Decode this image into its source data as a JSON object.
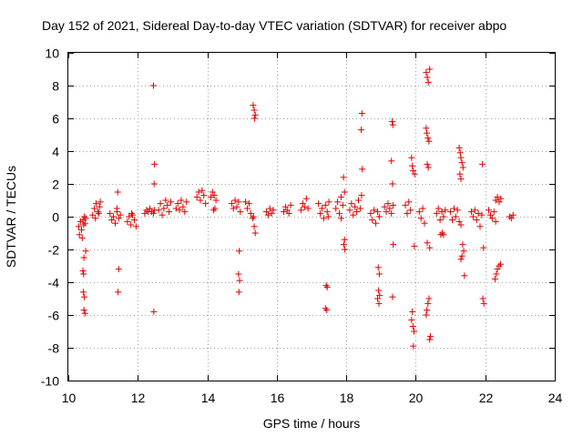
{
  "chart_data": {
    "type": "scatter",
    "title": "Day 152 of 2021, Sidereal Day-to-day VTEC variation (SDTVAR) for receiver abpo",
    "xlabel": "GPS time / hours",
    "ylabel": "SDTVAR / TECUs",
    "xlim": [
      10,
      24
    ],
    "ylim": [
      -10,
      10
    ],
    "xticks": [
      10,
      12,
      14,
      16,
      18,
      20,
      22,
      24
    ],
    "yticks": [
      -10,
      -8,
      -6,
      -4,
      -2,
      0,
      2,
      4,
      6,
      8,
      10
    ],
    "grid": true,
    "marker": "+",
    "color": "#e00000",
    "series": [
      {
        "name": "SDTVAR",
        "points": [
          [
            10.3,
            -0.6
          ],
          [
            10.32,
            -1.1
          ],
          [
            10.35,
            -0.3
          ],
          [
            10.38,
            -0.8
          ],
          [
            10.4,
            -1.3
          ],
          [
            10.42,
            -0.2
          ],
          [
            10.44,
            -0.5
          ],
          [
            10.46,
            0.0
          ],
          [
            10.48,
            -0.4
          ],
          [
            10.5,
            -2.1
          ],
          [
            10.45,
            -2.5
          ],
          [
            10.42,
            -3.3
          ],
          [
            10.44,
            -3.5
          ],
          [
            10.43,
            -4.6
          ],
          [
            10.46,
            -4.9
          ],
          [
            10.45,
            -5.7
          ],
          [
            10.48,
            -5.9
          ],
          [
            10.5,
            -0.1
          ],
          [
            10.7,
            0.1
          ],
          [
            10.75,
            0.5
          ],
          [
            10.8,
            0.8
          ],
          [
            10.85,
            0.3
          ],
          [
            10.9,
            0.6
          ],
          [
            10.78,
            -0.1
          ],
          [
            10.92,
            0.9
          ],
          [
            10.88,
            0.2
          ],
          [
            11.2,
            0.2
          ],
          [
            11.25,
            -0.2
          ],
          [
            11.3,
            0.0
          ],
          [
            11.35,
            -0.4
          ],
          [
            11.4,
            0.3
          ],
          [
            11.45,
            -0.1
          ],
          [
            11.5,
            0.1
          ],
          [
            11.42,
            1.5
          ],
          [
            11.4,
            0.5
          ],
          [
            11.45,
            -3.2
          ],
          [
            11.43,
            -4.6
          ],
          [
            11.7,
            -0.3
          ],
          [
            11.75,
            0.0
          ],
          [
            11.8,
            -0.5
          ],
          [
            11.85,
            0.1
          ],
          [
            11.9,
            -0.2
          ],
          [
            11.95,
            -0.6
          ],
          [
            11.82,
            0.2
          ],
          [
            12.2,
            0.2
          ],
          [
            12.25,
            0.4
          ],
          [
            12.3,
            0.3
          ],
          [
            12.35,
            0.5
          ],
          [
            12.4,
            0.3
          ],
          [
            12.45,
            0.2
          ],
          [
            12.48,
            0.4
          ],
          [
            12.45,
            8.0
          ],
          [
            12.48,
            3.2
          ],
          [
            12.47,
            2.0
          ],
          [
            12.46,
            -5.8
          ],
          [
            12.6,
            0.4
          ],
          [
            12.65,
            0.8
          ],
          [
            12.7,
            0.1
          ],
          [
            12.75,
            0.5
          ],
          [
            12.8,
            1.0
          ],
          [
            12.85,
            0.7
          ],
          [
            12.9,
            0.3
          ],
          [
            12.95,
            0.9
          ],
          [
            13.1,
            0.5
          ],
          [
            13.15,
            0.8
          ],
          [
            13.2,
            0.4
          ],
          [
            13.25,
            1.0
          ],
          [
            13.3,
            0.6
          ],
          [
            13.35,
            0.3
          ],
          [
            13.4,
            0.9
          ],
          [
            13.7,
            1.2
          ],
          [
            13.75,
            1.5
          ],
          [
            13.8,
            1.0
          ],
          [
            13.85,
            1.6
          ],
          [
            13.9,
            1.3
          ],
          [
            13.95,
            0.8
          ],
          [
            14.1,
            1.2
          ],
          [
            14.15,
            1.5
          ],
          [
            14.2,
            1.3
          ],
          [
            14.25,
            1.0
          ],
          [
            14.18,
            0.4
          ],
          [
            14.22,
            0.5
          ],
          [
            14.7,
            0.8
          ],
          [
            14.75,
            0.5
          ],
          [
            14.8,
            1.0
          ],
          [
            14.85,
            0.6
          ],
          [
            14.9,
            0.9
          ],
          [
            14.95,
            0.3
          ],
          [
            14.92,
            -2.1
          ],
          [
            14.9,
            -3.5
          ],
          [
            14.93,
            -3.9
          ],
          [
            14.91,
            -4.6
          ],
          [
            15.1,
            0.9
          ],
          [
            15.15,
            0.5
          ],
          [
            15.2,
            0.8
          ],
          [
            15.25,
            0.2
          ],
          [
            15.3,
            -0.1
          ],
          [
            15.35,
            -0.6
          ],
          [
            15.38,
            -1.0
          ],
          [
            15.32,
            6.8
          ],
          [
            15.35,
            6.5
          ],
          [
            15.38,
            6.2
          ],
          [
            15.36,
            6.0
          ],
          [
            15.33,
            0.0
          ],
          [
            15.7,
            0.3
          ],
          [
            15.75,
            0.1
          ],
          [
            15.8,
            0.5
          ],
          [
            15.85,
            0.2
          ],
          [
            15.9,
            0.4
          ],
          [
            16.2,
            0.3
          ],
          [
            16.25,
            0.6
          ],
          [
            16.3,
            0.4
          ],
          [
            16.35,
            0.2
          ],
          [
            16.4,
            0.7
          ],
          [
            16.7,
            0.4
          ],
          [
            16.75,
            0.8
          ],
          [
            16.8,
            0.6
          ],
          [
            16.85,
            1.1
          ],
          [
            16.9,
            0.5
          ],
          [
            17.2,
            0.8
          ],
          [
            17.25,
            0.2
          ],
          [
            17.3,
            0.5
          ],
          [
            17.35,
            -0.1
          ],
          [
            17.4,
            0.7
          ],
          [
            17.45,
            0.3
          ],
          [
            17.5,
            0.9
          ],
          [
            17.42,
            -4.2
          ],
          [
            17.45,
            -4.3
          ],
          [
            17.4,
            -5.6
          ],
          [
            17.44,
            -5.7
          ],
          [
            17.48,
            0.0
          ],
          [
            17.7,
            0.5
          ],
          [
            17.75,
            0.9
          ],
          [
            17.8,
            0.2
          ],
          [
            17.85,
            1.2
          ],
          [
            17.9,
            0.7
          ],
          [
            17.95,
            1.5
          ],
          [
            17.92,
            2.4
          ],
          [
            17.95,
            -1.4
          ],
          [
            17.93,
            -1.7
          ],
          [
            17.96,
            -2.0
          ],
          [
            17.85,
            -0.1
          ],
          [
            18.1,
            0.4
          ],
          [
            18.15,
            0.8
          ],
          [
            18.2,
            0.1
          ],
          [
            18.25,
            0.6
          ],
          [
            18.3,
            0.3
          ],
          [
            18.35,
            1.0
          ],
          [
            18.4,
            0.5
          ],
          [
            18.45,
            6.3
          ],
          [
            18.43,
            5.3
          ],
          [
            18.46,
            2.9
          ],
          [
            18.44,
            1.3
          ],
          [
            18.7,
            0.2
          ],
          [
            18.75,
            -0.2
          ],
          [
            18.8,
            0.4
          ],
          [
            18.85,
            -0.4
          ],
          [
            18.9,
            0.3
          ],
          [
            18.95,
            0.0
          ],
          [
            18.92,
            -3.1
          ],
          [
            18.95,
            -3.5
          ],
          [
            18.93,
            -4.5
          ],
          [
            18.96,
            -4.8
          ],
          [
            18.9,
            -5.0
          ],
          [
            18.94,
            -5.3
          ],
          [
            19.1,
            0.6
          ],
          [
            19.15,
            0.3
          ],
          [
            19.2,
            0.8
          ],
          [
            19.25,
            0.5
          ],
          [
            19.3,
            0.2
          ],
          [
            19.35,
            0.7
          ],
          [
            19.32,
            5.8
          ],
          [
            19.34,
            5.6
          ],
          [
            19.3,
            3.4
          ],
          [
            19.33,
            2.0
          ],
          [
            19.35,
            -1.7
          ],
          [
            19.33,
            -4.9
          ],
          [
            19.7,
            0.7
          ],
          [
            19.75,
            0.2
          ],
          [
            19.8,
            0.9
          ],
          [
            19.85,
            0.4
          ],
          [
            19.88,
            3.6
          ],
          [
            19.9,
            3.1
          ],
          [
            19.92,
            2.8
          ],
          [
            19.9,
            -5.8
          ],
          [
            19.88,
            -6.3
          ],
          [
            19.92,
            -6.7
          ],
          [
            19.95,
            -7.0
          ],
          [
            19.93,
            -7.9
          ],
          [
            19.96,
            -1.8
          ],
          [
            19.97,
            2.6
          ],
          [
            20.1,
            0.3
          ],
          [
            20.15,
            -0.1
          ],
          [
            20.2,
            0.5
          ],
          [
            20.25,
            -0.4
          ],
          [
            20.3,
            5.4
          ],
          [
            20.32,
            5.1
          ],
          [
            20.35,
            4.8
          ],
          [
            20.38,
            4.6
          ],
          [
            20.33,
            3.2
          ],
          [
            20.36,
            3.0
          ],
          [
            20.3,
            8.8
          ],
          [
            20.33,
            8.5
          ],
          [
            20.36,
            8.2
          ],
          [
            20.4,
            9.0
          ],
          [
            20.38,
            -5.0
          ],
          [
            20.35,
            -5.3
          ],
          [
            20.32,
            -5.7
          ],
          [
            20.3,
            -6.0
          ],
          [
            20.4,
            -1.9
          ],
          [
            20.33,
            -1.6
          ],
          [
            20.42,
            -7.3
          ],
          [
            20.4,
            -7.5
          ],
          [
            20.6,
            0.2
          ],
          [
            20.65,
            0.5
          ],
          [
            20.7,
            -0.2
          ],
          [
            20.75,
            0.3
          ],
          [
            20.8,
            0.0
          ],
          [
            20.85,
            0.4
          ],
          [
            20.72,
            -1.1
          ],
          [
            20.76,
            -1.0
          ],
          [
            20.8,
            -1.1
          ],
          [
            21.0,
            0.3
          ],
          [
            21.05,
            -0.2
          ],
          [
            21.1,
            0.5
          ],
          [
            21.15,
            0.0
          ],
          [
            21.2,
            0.4
          ],
          [
            21.25,
            4.2
          ],
          [
            21.28,
            3.9
          ],
          [
            21.3,
            3.6
          ],
          [
            21.33,
            3.3
          ],
          [
            21.36,
            3.0
          ],
          [
            21.27,
            2.6
          ],
          [
            21.3,
            2.3
          ],
          [
            21.25,
            -0.3
          ],
          [
            21.3,
            -0.5
          ],
          [
            21.35,
            -1.7
          ],
          [
            21.38,
            -2.1
          ],
          [
            21.33,
            -2.4
          ],
          [
            21.3,
            -2.6
          ],
          [
            21.4,
            -3.6
          ],
          [
            21.6,
            0.3
          ],
          [
            21.65,
            0.0
          ],
          [
            21.7,
            0.4
          ],
          [
            21.75,
            -0.2
          ],
          [
            21.8,
            0.2
          ],
          [
            21.85,
            -0.6
          ],
          [
            21.9,
            0.1
          ],
          [
            21.92,
            3.2
          ],
          [
            21.95,
            -1.9
          ],
          [
            21.93,
            -5.0
          ],
          [
            21.96,
            -5.3
          ],
          [
            22.1,
            0.4
          ],
          [
            22.15,
            0.1
          ],
          [
            22.2,
            -0.1
          ],
          [
            22.25,
            0.3
          ],
          [
            22.3,
            1.0
          ],
          [
            22.35,
            1.2
          ],
          [
            22.4,
            0.9
          ],
          [
            22.45,
            1.1
          ],
          [
            22.28,
            -3.8
          ],
          [
            22.32,
            -3.5
          ],
          [
            22.35,
            -3.2
          ],
          [
            22.4,
            -3.0
          ],
          [
            22.44,
            -2.9
          ],
          [
            22.3,
            -0.3
          ],
          [
            22.7,
            0.0
          ],
          [
            22.75,
            -0.1
          ],
          [
            22.8,
            0.1
          ]
        ]
      }
    ]
  }
}
